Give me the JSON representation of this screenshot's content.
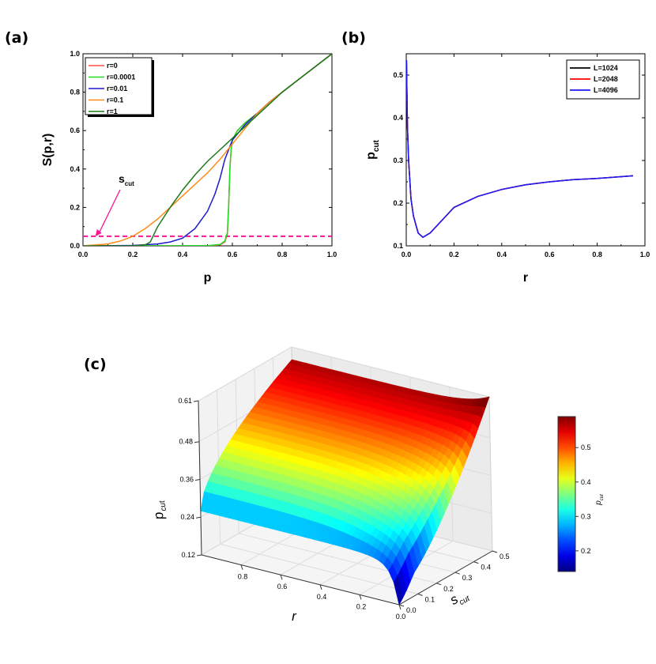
{
  "panels": {
    "a_label": "(a)",
    "b_label": "(b)",
    "c_label": "(c)"
  },
  "chart_data": [
    {
      "id": "a",
      "type": "line",
      "title": "",
      "xlabel": "p",
      "ylabel": "S(p,r)",
      "xlim": [
        0,
        1
      ],
      "ylim": [
        0,
        1
      ],
      "xticks": [
        "0.0",
        "0.2",
        "0.4",
        "0.6",
        "0.8",
        "1.0"
      ],
      "yticks": [
        "0.0",
        "0.2",
        "0.4",
        "0.6",
        "0.8",
        "1.0"
      ],
      "legend": {
        "position": "top-left",
        "entries": [
          "r=0",
          "r=0.0001",
          "r=0.01",
          "r=0.1",
          "r=1"
        ]
      },
      "annotation": {
        "text": "s",
        "subscript": "cut",
        "arrow_to": [
          0.05,
          0.05
        ]
      },
      "threshold_line": {
        "y": 0.05,
        "color": "#ff1493",
        "style": "dashed"
      },
      "series": [
        {
          "name": "r=0",
          "color": "#ff4d4d",
          "x": [
            0,
            0.5,
            0.55,
            0.57,
            0.58,
            0.585,
            0.59,
            0.595,
            0.6,
            0.62,
            0.65,
            0.7,
            0.75,
            0.8,
            0.9,
            1.0
          ],
          "y": [
            0,
            0,
            0.005,
            0.02,
            0.06,
            0.2,
            0.4,
            0.5,
            0.55,
            0.6,
            0.64,
            0.69,
            0.75,
            0.8,
            0.9,
            1.0
          ]
        },
        {
          "name": "r=0.0001",
          "color": "#22dd22",
          "x": [
            0,
            0.5,
            0.55,
            0.57,
            0.58,
            0.585,
            0.59,
            0.595,
            0.6,
            0.62,
            0.65,
            0.7,
            0.75,
            0.8,
            0.9,
            1.0
          ],
          "y": [
            0,
            0.001,
            0.007,
            0.025,
            0.07,
            0.21,
            0.41,
            0.5,
            0.55,
            0.6,
            0.64,
            0.69,
            0.75,
            0.8,
            0.9,
            1.0
          ]
        },
        {
          "name": "r=0.01",
          "color": "#1c1ccf",
          "x": [
            0,
            0.2,
            0.3,
            0.35,
            0.4,
            0.45,
            0.5,
            0.53,
            0.55,
            0.57,
            0.6,
            0.65,
            0.7,
            0.75,
            0.8,
            0.9,
            1.0
          ],
          "y": [
            0,
            0.002,
            0.01,
            0.02,
            0.04,
            0.09,
            0.18,
            0.27,
            0.35,
            0.45,
            0.55,
            0.63,
            0.69,
            0.75,
            0.8,
            0.9,
            1.0
          ]
        },
        {
          "name": "r=0.1",
          "color": "#ff8c1a",
          "x": [
            0,
            0.1,
            0.15,
            0.2,
            0.25,
            0.3,
            0.35,
            0.4,
            0.45,
            0.5,
            0.55,
            0.6,
            0.65,
            0.7,
            0.75,
            0.8,
            0.9,
            1.0
          ],
          "y": [
            0,
            0.01,
            0.025,
            0.05,
            0.09,
            0.14,
            0.2,
            0.26,
            0.32,
            0.38,
            0.45,
            0.53,
            0.61,
            0.69,
            0.75,
            0.8,
            0.9,
            1.0
          ]
        },
        {
          "name": "r=1",
          "color": "#1a7a1a",
          "x": [
            0,
            0.2,
            0.25,
            0.27,
            0.3,
            0.35,
            0.4,
            0.45,
            0.5,
            0.55,
            0.6,
            0.65,
            0.7,
            0.75,
            0.8,
            0.9,
            1.0
          ],
          "y": [
            0,
            0,
            0.005,
            0.02,
            0.1,
            0.2,
            0.29,
            0.37,
            0.44,
            0.5,
            0.56,
            0.62,
            0.68,
            0.74,
            0.8,
            0.9,
            1.0
          ]
        }
      ]
    },
    {
      "id": "b",
      "type": "line",
      "title": "",
      "xlabel": "r",
      "ylabel": "p",
      "ylabel_sub": "cut",
      "xlim": [
        0,
        1
      ],
      "ylim": [
        0.1,
        0.55
      ],
      "xticks": [
        "0.0",
        "0.2",
        "0.4",
        "0.6",
        "0.8",
        "1.0"
      ],
      "yticks": [
        "0.1",
        "0.2",
        "0.3",
        "0.4",
        "0.5"
      ],
      "legend": {
        "position": "top-right",
        "entries": [
          "L=1024",
          "L=2048",
          "L=4096"
        ]
      },
      "series": [
        {
          "name": "L=1024",
          "color": "#000000",
          "x": [
            0.001,
            0.005,
            0.01,
            0.02,
            0.03,
            0.05,
            0.07,
            0.1,
            0.15,
            0.2,
            0.3,
            0.4,
            0.5,
            0.6,
            0.7,
            0.8,
            0.9,
            0.95
          ],
          "y": [
            0.535,
            0.38,
            0.3,
            0.21,
            0.17,
            0.13,
            0.12,
            0.13,
            0.16,
            0.19,
            0.216,
            0.232,
            0.243,
            0.25,
            0.255,
            0.258,
            0.262,
            0.264
          ]
        },
        {
          "name": "L=2048",
          "color": "#ff0000",
          "x": [
            0.001,
            0.005,
            0.01,
            0.02,
            0.03,
            0.05,
            0.07,
            0.1,
            0.15,
            0.2,
            0.3,
            0.4,
            0.5,
            0.6,
            0.7,
            0.8,
            0.9,
            0.95
          ],
          "y": [
            0.535,
            0.38,
            0.3,
            0.21,
            0.17,
            0.13,
            0.12,
            0.13,
            0.16,
            0.19,
            0.216,
            0.232,
            0.243,
            0.25,
            0.255,
            0.258,
            0.262,
            0.264
          ]
        },
        {
          "name": "L=4096",
          "color": "#1a1aff",
          "x": [
            0.001,
            0.005,
            0.01,
            0.02,
            0.03,
            0.05,
            0.07,
            0.1,
            0.15,
            0.2,
            0.3,
            0.4,
            0.5,
            0.6,
            0.7,
            0.8,
            0.9,
            0.95
          ],
          "y": [
            0.535,
            0.38,
            0.3,
            0.21,
            0.17,
            0.13,
            0.12,
            0.13,
            0.16,
            0.19,
            0.216,
            0.232,
            0.243,
            0.25,
            0.255,
            0.258,
            0.262,
            0.264
          ]
        }
      ]
    },
    {
      "id": "c",
      "type": "heatmap",
      "title": "",
      "surface": "3d",
      "xlabel": "r",
      "ylabel": "s",
      "ylabel_sub": "cut",
      "zlabel": "p",
      "zlabel_sub": "cut",
      "xticks": [
        "0.8",
        "0.6",
        "0.4",
        "0.2",
        "0.0"
      ],
      "yticks": [
        "0.0",
        "0.1",
        "0.2",
        "0.3",
        "0.4",
        "0.5"
      ],
      "zticks": [
        "0.12",
        "0.24",
        "0.36",
        "0.48",
        "0.61"
      ],
      "zlim": [
        0.12,
        0.61
      ],
      "corner_values": {
        "r1_s0": 0.26,
        "r0_s0": 0.12,
        "r1_s05": 0.57,
        "r0_s05": 0.61
      },
      "colorbar": {
        "label": "p",
        "label_sub": "cut",
        "ticks": [
          "0.2",
          "0.3",
          "0.4",
          "0.5"
        ],
        "range": [
          0.14,
          0.59
        ]
      }
    }
  ]
}
